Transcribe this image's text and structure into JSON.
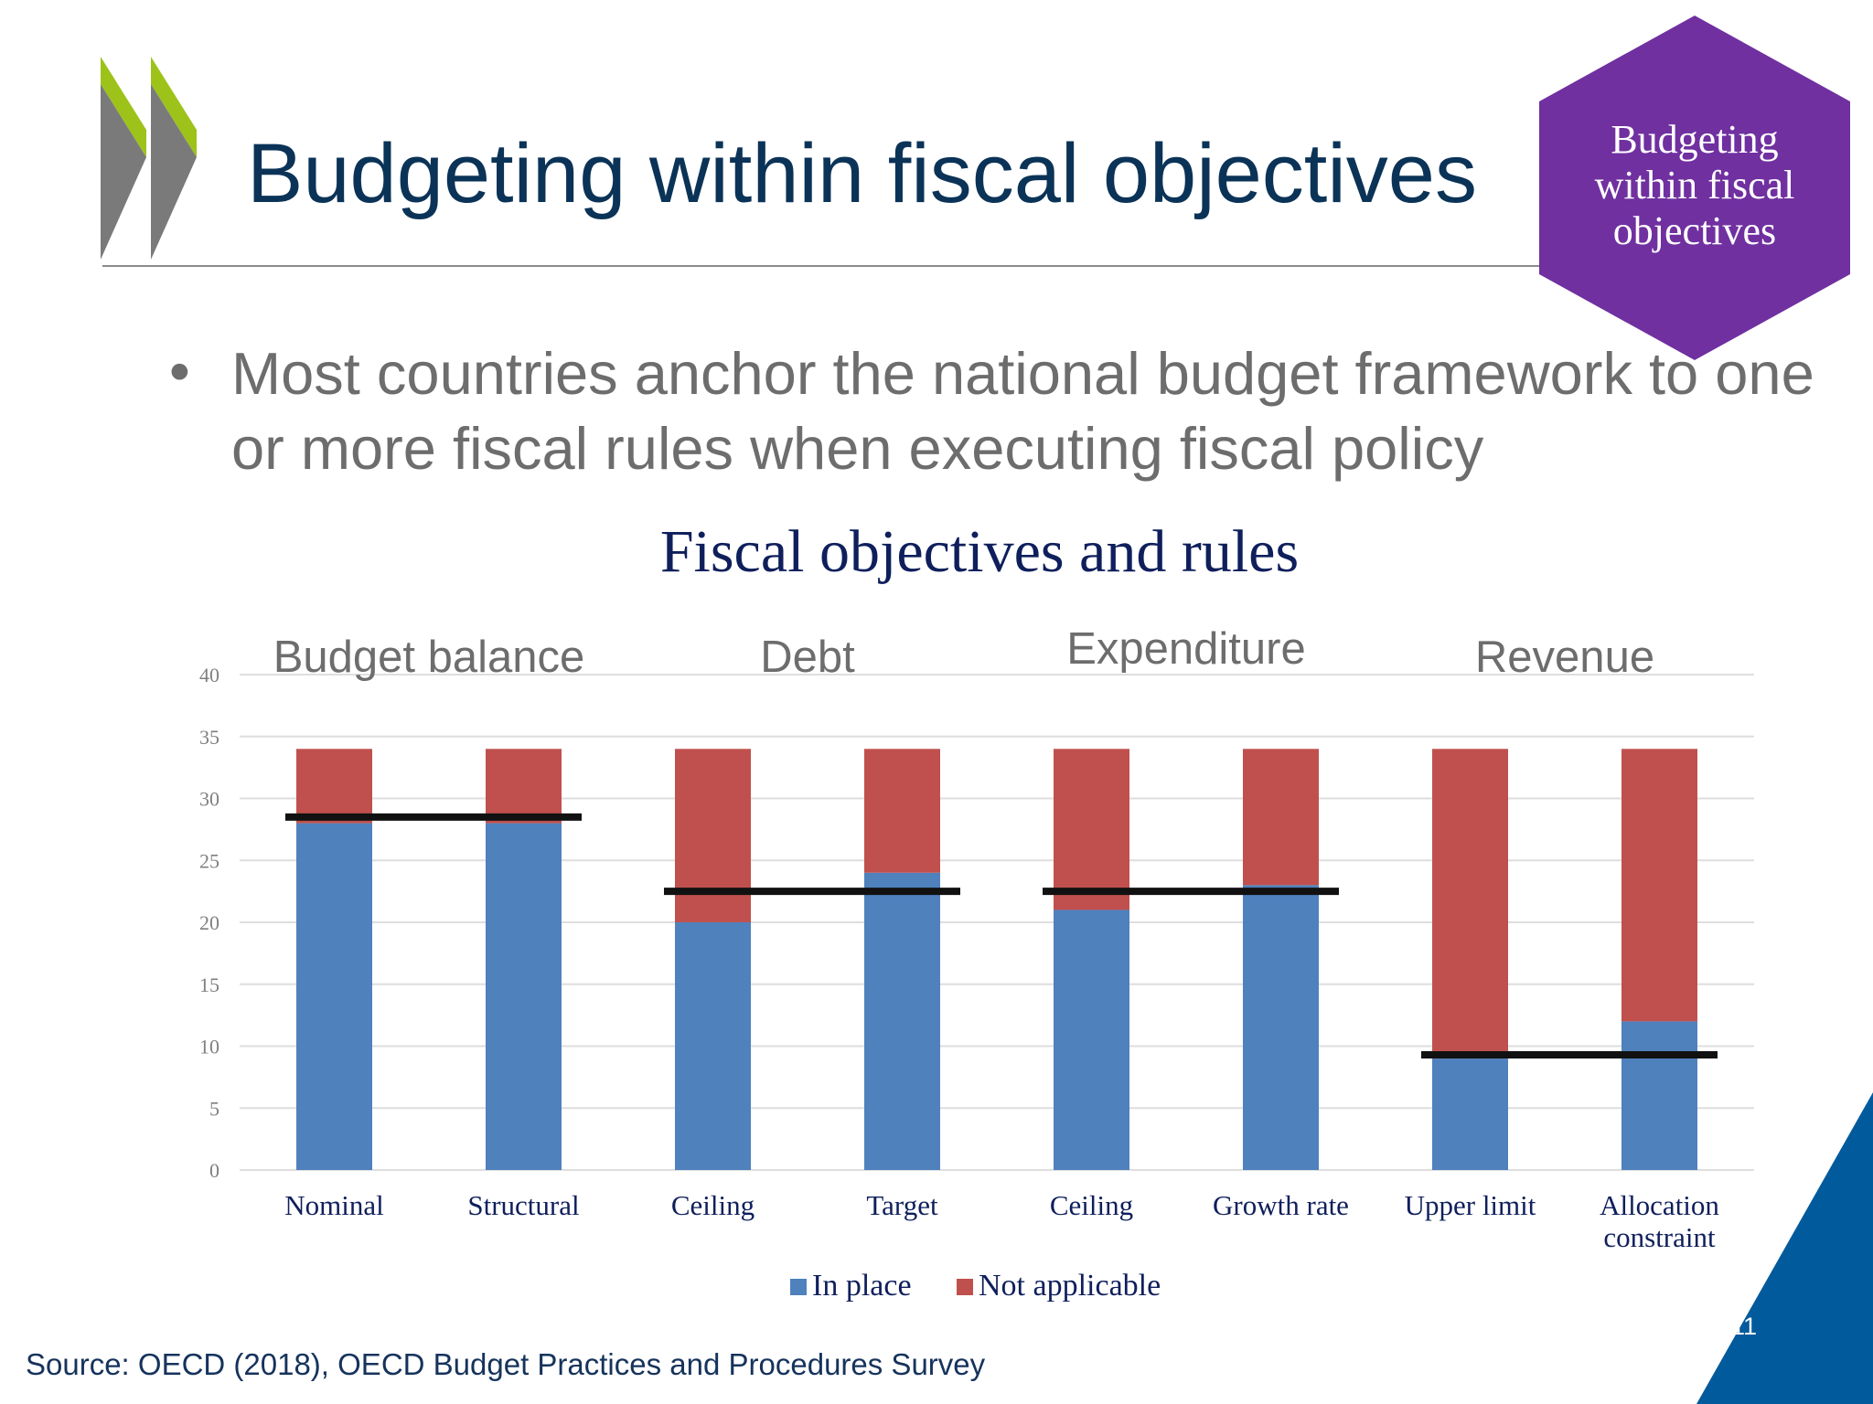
{
  "slide": {
    "title": "Budgeting within fiscal objectives",
    "badge": "Budgeting\nwithin fiscal\nobjectives",
    "bullet_marker": "•",
    "bullet": "Most countries anchor the national budget framework to one or more fiscal rules when executing fiscal policy",
    "source": "Source: OECD (2018), OECD Budget Practices and Procedures Survey",
    "page_number": "11"
  },
  "colors": {
    "title": "#0b3357",
    "badge": "#7030a0",
    "in_place": "#4f81bd",
    "not_applicable": "#c0504d",
    "marker": "#111111",
    "corner": "#005a9c",
    "logo_green": "#9dc31b",
    "logo_grey": "#7a7a7a"
  },
  "chart_data": {
    "type": "bar",
    "stacked": true,
    "title": "Fiscal objectives and rules",
    "groups": [
      {
        "label": "Budget balance",
        "categories": [
          "Nominal",
          "Structural"
        ],
        "average": 28.5
      },
      {
        "label": "Debt",
        "categories": [
          "Ceiling",
          "Target"
        ],
        "average": 22.5
      },
      {
        "label": "Expenditure",
        "categories": [
          "Ceiling",
          "Growth rate"
        ],
        "average": 22.5
      },
      {
        "label": "Revenue",
        "categories": [
          "Upper limit",
          "Allocation constraint"
        ],
        "average": 9.3
      }
    ],
    "categories": [
      "Nominal",
      "Structural",
      "Ceiling",
      "Target",
      "Ceiling",
      "Growth rate",
      "Upper limit",
      "Allocation constraint"
    ],
    "series": [
      {
        "name": "In place",
        "values": [
          28,
          28,
          20,
          24,
          21,
          23,
          9,
          12
        ]
      },
      {
        "name": "Not applicable",
        "values": [
          6,
          6,
          14,
          10,
          13,
          11,
          25,
          22
        ]
      }
    ],
    "ylim": [
      0,
      40
    ],
    "yticks": [
      0,
      5,
      10,
      15,
      20,
      25,
      30,
      35,
      40
    ],
    "grid": true,
    "legend": "bottom-center"
  }
}
